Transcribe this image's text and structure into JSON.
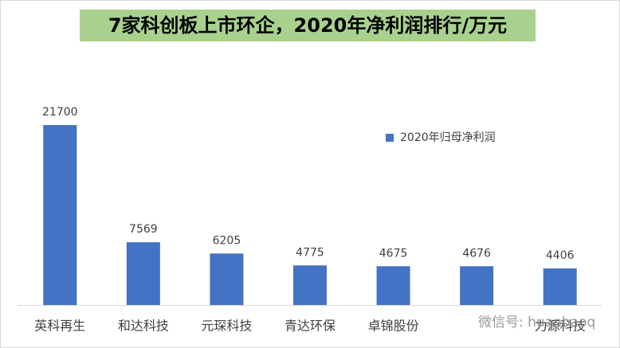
{
  "chart_data": {
    "type": "bar",
    "title": "7家科创板上市环企，2020年净利润排行/万元",
    "categories": [
      "英科再生",
      "和达科技",
      "元琛科技",
      "青达环保",
      "卓锦股份",
      null,
      "力源科技"
    ],
    "series": [
      {
        "name": "2020年归母净利润",
        "color": "#4472c4",
        "values": [
          21700,
          7569,
          6205,
          4775,
          4675,
          4676,
          4406
        ]
      }
    ],
    "legend": "upper right",
    "watermark": "微信号: huanbaoq"
  }
}
